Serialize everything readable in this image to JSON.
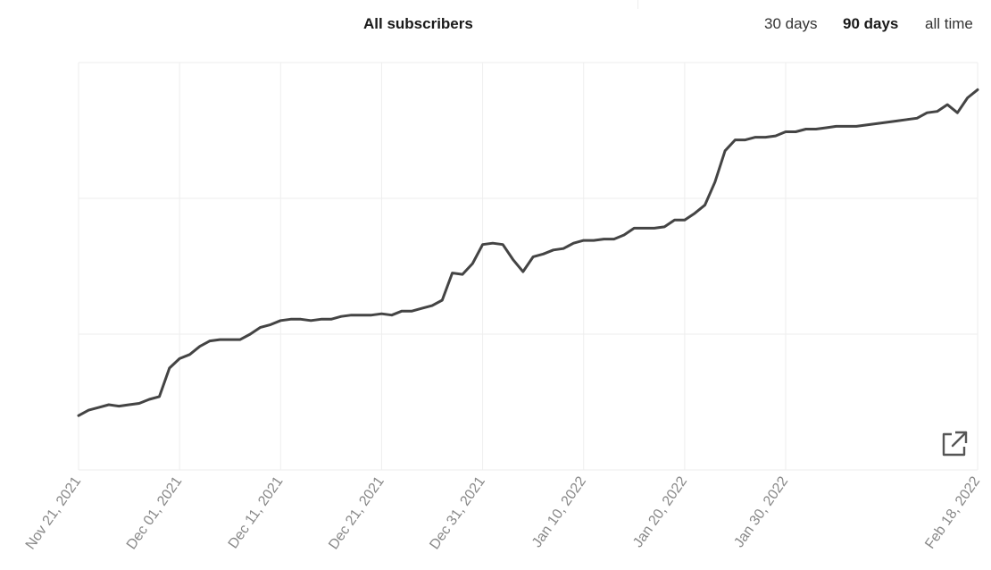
{
  "header": {
    "title": "All subscribers",
    "ranges": [
      "30 days",
      "90 days",
      "all time"
    ],
    "active_range": "90 days"
  },
  "icons": {
    "popout": "external-link-icon"
  },
  "colors": {
    "line": "#444444",
    "grid": "#eeeeee",
    "tick_label": "#888888"
  },
  "chart_data": {
    "type": "line",
    "title": "All subscribers",
    "xlabel": "",
    "ylabel": "",
    "x_tick_labels": [
      "Nov 21, 2021",
      "Dec 01, 2021",
      "Dec 11, 2021",
      "Dec 21, 2021",
      "Dec 31, 2021",
      "Jan 10, 2022",
      "Jan 20, 2022",
      "Jan 30, 2022",
      "Feb 18, 2022"
    ],
    "x_range": [
      "2021-11-21",
      "2022-02-18"
    ],
    "y_range": [
      0,
      300
    ],
    "y_gridlines": [
      0,
      100,
      200,
      300
    ],
    "y_ticks_shown": false,
    "grid": true,
    "series": [
      {
        "x": [
          "2021-11-21",
          "2021-11-22",
          "2021-11-23",
          "2021-11-24",
          "2021-11-25",
          "2021-11-26",
          "2021-11-27",
          "2021-11-28",
          "2021-11-29",
          "2021-11-30",
          "2021-12-01",
          "2021-12-02",
          "2021-12-03",
          "2021-12-04",
          "2021-12-05",
          "2021-12-06",
          "2021-12-07",
          "2021-12-08",
          "2021-12-09",
          "2021-12-10",
          "2021-12-11",
          "2021-12-12",
          "2021-12-13",
          "2021-12-14",
          "2021-12-15",
          "2021-12-16",
          "2021-12-17",
          "2021-12-18",
          "2021-12-19",
          "2021-12-20",
          "2021-12-21",
          "2021-12-22",
          "2021-12-23",
          "2021-12-24",
          "2021-12-25",
          "2021-12-26",
          "2021-12-27",
          "2021-12-28",
          "2021-12-29",
          "2021-12-30",
          "2021-12-31",
          "2022-01-01",
          "2022-01-02",
          "2022-01-03",
          "2022-01-04",
          "2022-01-05",
          "2022-01-06",
          "2022-01-07",
          "2022-01-08",
          "2022-01-09",
          "2022-01-10",
          "2022-01-11",
          "2022-01-12",
          "2022-01-13",
          "2022-01-14",
          "2022-01-15",
          "2022-01-16",
          "2022-01-17",
          "2022-01-18",
          "2022-01-19",
          "2022-01-20",
          "2022-01-21",
          "2022-01-22",
          "2022-01-23",
          "2022-01-24",
          "2022-01-25",
          "2022-01-26",
          "2022-01-27",
          "2022-01-28",
          "2022-01-29",
          "2022-01-30",
          "2022-01-31",
          "2022-02-01",
          "2022-02-02",
          "2022-02-03",
          "2022-02-04",
          "2022-02-05",
          "2022-02-06",
          "2022-02-07",
          "2022-02-08",
          "2022-02-09",
          "2022-02-10",
          "2022-02-11",
          "2022-02-12",
          "2022-02-13",
          "2022-02-14",
          "2022-02-15",
          "2022-02-16",
          "2022-02-17",
          "2022-02-18"
        ],
        "values": [
          40,
          44,
          46,
          48,
          47,
          48,
          49,
          52,
          54,
          75,
          82,
          85,
          91,
          95,
          96,
          96,
          96,
          100,
          105,
          107,
          110,
          111,
          111,
          110,
          111,
          111,
          113,
          114,
          114,
          114,
          115,
          114,
          117,
          117,
          119,
          121,
          125,
          145,
          144,
          152,
          166,
          167,
          166,
          155,
          146,
          157,
          159,
          162,
          163,
          167,
          169,
          169,
          170,
          170,
          173,
          178,
          178,
          178,
          179,
          184,
          184,
          189,
          195,
          212,
          235,
          243,
          243,
          245,
          245,
          246,
          249,
          249,
          251,
          251,
          252,
          253,
          253,
          253,
          254,
          255,
          256,
          257,
          258,
          259,
          263,
          264,
          269,
          263,
          274,
          280
        ]
      }
    ]
  }
}
